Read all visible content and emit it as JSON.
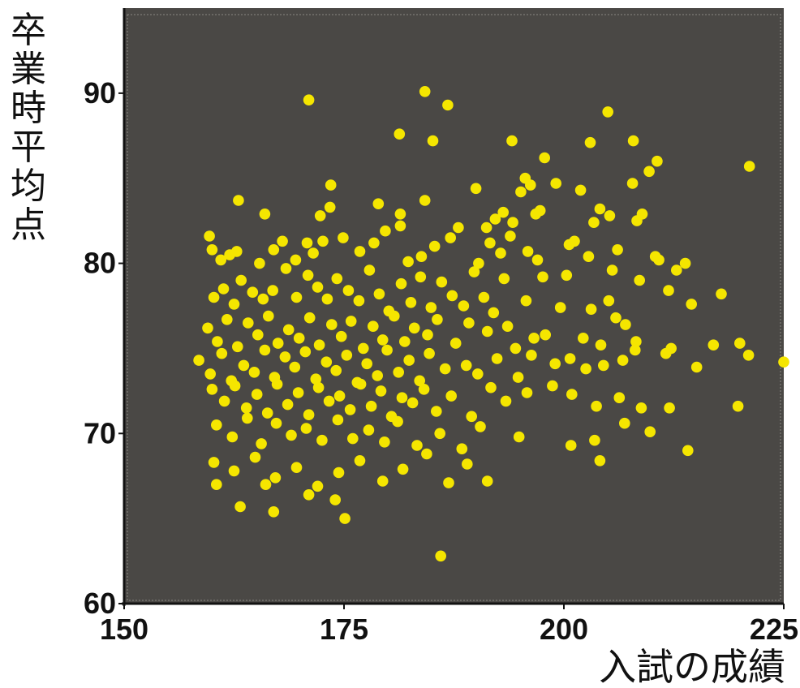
{
  "chart_data": {
    "type": "scatter",
    "title": "",
    "xlabel": "入試の成績",
    "ylabel": "卒業時平均点",
    "xlim": [
      150,
      225
    ],
    "ylim": [
      60,
      95
    ],
    "xticks": [
      "150",
      "175",
      "200",
      "225"
    ],
    "yticks": [
      "60",
      "70",
      "80",
      "90"
    ],
    "grid": false,
    "legend": "none",
    "background_color": "#4a4845",
    "point_color": "#f5e600",
    "axis_color": "#111111",
    "series": [
      {
        "points": [
          [
            171.0,
            89.6
          ],
          [
            184.2,
            90.1
          ],
          [
            186.8,
            89.3
          ],
          [
            181.3,
            87.6
          ],
          [
            185.1,
            87.2
          ],
          [
            194.1,
            87.2
          ],
          [
            205.0,
            88.9
          ],
          [
            203.0,
            87.1
          ],
          [
            207.9,
            87.2
          ],
          [
            197.8,
            86.2
          ],
          [
            210.6,
            86.0
          ],
          [
            209.7,
            85.4
          ],
          [
            221.1,
            85.7
          ],
          [
            173.5,
            84.6
          ],
          [
            163.0,
            83.7
          ],
          [
            166.0,
            82.9
          ],
          [
            172.3,
            82.8
          ],
          [
            173.4,
            83.3
          ],
          [
            184.2,
            83.7
          ],
          [
            178.9,
            83.5
          ],
          [
            181.4,
            82.9
          ],
          [
            181.4,
            82.2
          ],
          [
            188.0,
            82.1
          ],
          [
            190.0,
            84.4
          ],
          [
            195.1,
            84.2
          ],
          [
            195.6,
            85.0
          ],
          [
            196.2,
            84.6
          ],
          [
            199.1,
            84.7
          ],
          [
            201.9,
            84.3
          ],
          [
            204.1,
            83.2
          ],
          [
            205.2,
            82.8
          ],
          [
            207.8,
            84.7
          ],
          [
            208.3,
            82.5
          ],
          [
            208.9,
            82.9
          ],
          [
            203.4,
            82.4
          ],
          [
            191.2,
            82.1
          ],
          [
            192.2,
            82.6
          ],
          [
            193.1,
            83.0
          ],
          [
            194.2,
            82.4
          ],
          [
            196.8,
            82.9
          ],
          [
            197.3,
            83.1
          ],
          [
            159.7,
            81.6
          ],
          [
            160.0,
            80.8
          ],
          [
            161.0,
            80.2
          ],
          [
            162.0,
            80.5
          ],
          [
            162.8,
            80.7
          ],
          [
            165.4,
            80.0
          ],
          [
            167.0,
            80.8
          ],
          [
            168.0,
            81.3
          ],
          [
            169.5,
            80.2
          ],
          [
            170.8,
            81.2
          ],
          [
            171.5,
            80.6
          ],
          [
            172.6,
            81.3
          ],
          [
            174.9,
            81.5
          ],
          [
            176.8,
            80.7
          ],
          [
            178.4,
            81.2
          ],
          [
            179.7,
            81.9
          ],
          [
            182.3,
            80.1
          ],
          [
            183.8,
            80.4
          ],
          [
            185.3,
            81.0
          ],
          [
            187.1,
            81.5
          ],
          [
            190.3,
            80.0
          ],
          [
            191.6,
            81.2
          ],
          [
            192.8,
            80.6
          ],
          [
            193.9,
            81.6
          ],
          [
            195.9,
            80.7
          ],
          [
            197.0,
            80.2
          ],
          [
            200.6,
            81.1
          ],
          [
            201.2,
            81.3
          ],
          [
            202.8,
            80.4
          ],
          [
            206.1,
            80.8
          ],
          [
            210.4,
            80.4
          ],
          [
            210.8,
            80.2
          ],
          [
            212.8,
            79.6
          ],
          [
            213.8,
            80.0
          ],
          [
            160.2,
            78.0
          ],
          [
            161.3,
            78.5
          ],
          [
            162.5,
            77.6
          ],
          [
            163.3,
            79.0
          ],
          [
            164.6,
            78.3
          ],
          [
            165.8,
            77.9
          ],
          [
            166.9,
            78.4
          ],
          [
            168.4,
            79.7
          ],
          [
            169.6,
            78.0
          ],
          [
            170.9,
            79.3
          ],
          [
            172.0,
            78.6
          ],
          [
            173.1,
            77.9
          ],
          [
            174.2,
            79.1
          ],
          [
            175.5,
            78.4
          ],
          [
            176.7,
            77.8
          ],
          [
            177.9,
            79.6
          ],
          [
            179.0,
            78.2
          ],
          [
            180.1,
            77.2
          ],
          [
            181.5,
            78.8
          ],
          [
            182.6,
            77.7
          ],
          [
            183.7,
            79.2
          ],
          [
            184.9,
            77.4
          ],
          [
            186.1,
            78.9
          ],
          [
            187.3,
            78.1
          ],
          [
            188.6,
            77.5
          ],
          [
            189.8,
            79.5
          ],
          [
            190.9,
            78.0
          ],
          [
            192.0,
            77.1
          ],
          [
            193.2,
            79.1
          ],
          [
            195.7,
            77.8
          ],
          [
            197.6,
            79.2
          ],
          [
            200.3,
            79.3
          ],
          [
            203.1,
            77.3
          ],
          [
            205.1,
            77.8
          ],
          [
            205.5,
            79.6
          ],
          [
            208.6,
            79.0
          ],
          [
            211.9,
            78.4
          ],
          [
            214.5,
            77.6
          ],
          [
            217.9,
            78.2
          ],
          [
            159.5,
            76.2
          ],
          [
            160.6,
            75.4
          ],
          [
            161.7,
            76.7
          ],
          [
            162.9,
            75.1
          ],
          [
            164.1,
            76.5
          ],
          [
            165.2,
            75.8
          ],
          [
            166.4,
            76.9
          ],
          [
            167.5,
            75.3
          ],
          [
            168.7,
            76.1
          ],
          [
            169.9,
            75.6
          ],
          [
            171.1,
            76.8
          ],
          [
            172.2,
            75.2
          ],
          [
            173.6,
            76.4
          ],
          [
            174.7,
            75.7
          ],
          [
            175.8,
            76.6
          ],
          [
            177.2,
            75.0
          ],
          [
            178.3,
            76.3
          ],
          [
            179.4,
            75.5
          ],
          [
            180.7,
            76.9
          ],
          [
            181.9,
            75.4
          ],
          [
            183.0,
            76.2
          ],
          [
            184.5,
            75.8
          ],
          [
            185.6,
            76.7
          ],
          [
            187.7,
            75.3
          ],
          [
            189.2,
            76.5
          ],
          [
            191.3,
            76.0
          ],
          [
            193.6,
            76.3
          ],
          [
            194.5,
            75.0
          ],
          [
            196.6,
            75.6
          ],
          [
            197.9,
            75.8
          ],
          [
            199.6,
            77.4
          ],
          [
            202.2,
            75.6
          ],
          [
            204.2,
            75.2
          ],
          [
            205.9,
            76.8
          ],
          [
            207.0,
            76.4
          ],
          [
            208.2,
            75.4
          ],
          [
            212.2,
            75.0
          ],
          [
            217.0,
            75.2
          ],
          [
            220.0,
            75.3
          ],
          [
            158.5,
            74.3
          ],
          [
            159.8,
            73.5
          ],
          [
            161.1,
            74.7
          ],
          [
            162.2,
            73.1
          ],
          [
            163.6,
            74.0
          ],
          [
            164.8,
            73.6
          ],
          [
            166.0,
            74.9
          ],
          [
            167.1,
            73.3
          ],
          [
            168.3,
            74.5
          ],
          [
            169.4,
            73.9
          ],
          [
            170.6,
            74.8
          ],
          [
            171.8,
            73.2
          ],
          [
            173.0,
            74.2
          ],
          [
            174.1,
            73.7
          ],
          [
            175.3,
            74.6
          ],
          [
            176.5,
            73.0
          ],
          [
            177.6,
            74.1
          ],
          [
            178.8,
            73.4
          ],
          [
            179.9,
            74.9
          ],
          [
            181.2,
            73.6
          ],
          [
            182.4,
            74.3
          ],
          [
            183.6,
            73.1
          ],
          [
            184.7,
            74.7
          ],
          [
            186.5,
            73.8
          ],
          [
            188.9,
            74.0
          ],
          [
            190.2,
            73.5
          ],
          [
            192.4,
            74.4
          ],
          [
            194.8,
            73.3
          ],
          [
            196.3,
            74.6
          ],
          [
            199.0,
            74.1
          ],
          [
            200.7,
            74.4
          ],
          [
            202.5,
            73.8
          ],
          [
            204.5,
            74.0
          ],
          [
            206.7,
            74.3
          ],
          [
            208.1,
            74.9
          ],
          [
            211.6,
            74.7
          ],
          [
            215.1,
            73.9
          ],
          [
            221.0,
            74.6
          ],
          [
            225.0,
            74.2
          ],
          [
            160.0,
            72.6
          ],
          [
            161.4,
            71.9
          ],
          [
            162.6,
            72.8
          ],
          [
            163.9,
            71.5
          ],
          [
            165.1,
            72.3
          ],
          [
            166.3,
            71.2
          ],
          [
            167.4,
            72.9
          ],
          [
            168.6,
            71.7
          ],
          [
            169.8,
            72.4
          ],
          [
            171.0,
            71.1
          ],
          [
            172.1,
            72.7
          ],
          [
            173.3,
            71.9
          ],
          [
            174.5,
            72.2
          ],
          [
            175.7,
            71.4
          ],
          [
            176.9,
            72.9
          ],
          [
            178.1,
            71.6
          ],
          [
            179.2,
            72.5
          ],
          [
            180.4,
            71.0
          ],
          [
            181.6,
            72.1
          ],
          [
            182.8,
            71.8
          ],
          [
            184.1,
            72.6
          ],
          [
            185.5,
            71.3
          ],
          [
            187.2,
            72.2
          ],
          [
            189.5,
            71.0
          ],
          [
            191.7,
            72.7
          ],
          [
            193.4,
            71.9
          ],
          [
            195.8,
            72.4
          ],
          [
            198.7,
            72.8
          ],
          [
            200.9,
            72.3
          ],
          [
            203.7,
            71.6
          ],
          [
            206.3,
            72.1
          ],
          [
            208.8,
            71.5
          ],
          [
            212.0,
            71.5
          ],
          [
            219.8,
            71.6
          ],
          [
            160.5,
            70.5
          ],
          [
            162.3,
            69.8
          ],
          [
            164.0,
            70.9
          ],
          [
            165.6,
            69.4
          ],
          [
            167.3,
            70.6
          ],
          [
            169.0,
            69.9
          ],
          [
            170.7,
            70.3
          ],
          [
            172.5,
            69.6
          ],
          [
            174.3,
            70.8
          ],
          [
            176.0,
            69.7
          ],
          [
            177.8,
            70.2
          ],
          [
            179.6,
            69.5
          ],
          [
            181.1,
            70.7
          ],
          [
            183.3,
            69.3
          ],
          [
            185.9,
            70.0
          ],
          [
            188.4,
            69.1
          ],
          [
            190.5,
            70.4
          ],
          [
            194.9,
            69.8
          ],
          [
            200.8,
            69.3
          ],
          [
            203.5,
            69.6
          ],
          [
            206.9,
            70.6
          ],
          [
            209.8,
            70.1
          ],
          [
            214.1,
            69.0
          ],
          [
            160.2,
            68.3
          ],
          [
            162.5,
            67.8
          ],
          [
            164.9,
            68.6
          ],
          [
            167.2,
            67.4
          ],
          [
            169.6,
            68.0
          ],
          [
            172.0,
            66.9
          ],
          [
            174.4,
            67.7
          ],
          [
            176.8,
            68.4
          ],
          [
            179.4,
            67.2
          ],
          [
            181.7,
            67.9
          ],
          [
            184.4,
            68.8
          ],
          [
            186.9,
            67.1
          ],
          [
            189.0,
            68.2
          ],
          [
            191.3,
            67.2
          ],
          [
            204.1,
            68.4
          ],
          [
            160.5,
            67.0
          ],
          [
            163.2,
            65.7
          ],
          [
            166.1,
            67.0
          ],
          [
            167.0,
            65.4
          ],
          [
            171.0,
            66.4
          ],
          [
            174.0,
            66.1
          ],
          [
            175.1,
            65.0
          ],
          [
            186.0,
            62.8
          ]
        ]
      }
    ]
  }
}
